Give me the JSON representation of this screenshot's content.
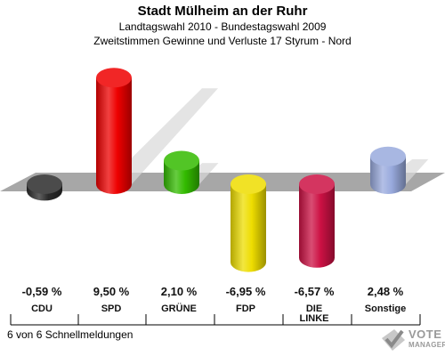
{
  "header": {
    "title": "Stadt Mülheim an der Ruhr",
    "subtitle1": "Landtagswahl 2010 - Bundestagswahl 2009",
    "subtitle2": "Zweitstimmen Gewinne und Verluste 17 Styrum - Nord"
  },
  "footer": {
    "status": "6 von 6 Schnellmeldungen"
  },
  "logo": {
    "line1": "VOTE",
    "line2": "MANAGER"
  },
  "chart_data": {
    "type": "bar",
    "categories": [
      "CDU",
      "SPD",
      "GRÜNE",
      "FDP",
      "DIE LINKE",
      "Sonstige"
    ],
    "category_lines": [
      [
        "CDU"
      ],
      [
        "SPD"
      ],
      [
        "GRÜNE"
      ],
      [
        "FDP"
      ],
      [
        "DIE",
        "LINKE"
      ],
      [
        "Sonstige"
      ]
    ],
    "values": [
      -0.59,
      9.5,
      2.1,
      -6.95,
      -6.57,
      2.48
    ],
    "value_labels": [
      "-0,59 %",
      "9,50 %",
      "2,10 %",
      "-6,95 %",
      "-6,57 %",
      "2,48 %"
    ],
    "colors": [
      "#2b2b2b",
      "#ee0000",
      "#33bb00",
      "#eedd00",
      "#cc1144",
      "#99aadd"
    ],
    "title": "",
    "xlabel": "",
    "ylabel": "",
    "baseline": 0,
    "legend": "none",
    "grid": false
  }
}
